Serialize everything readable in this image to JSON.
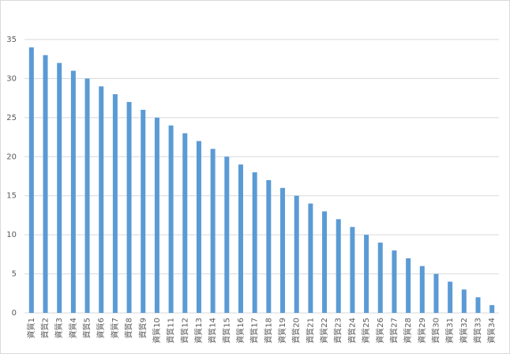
{
  "chart_data": {
    "type": "bar",
    "categories": [
      "資質1",
      "資質2",
      "資質3",
      "資質4",
      "資質5",
      "資質6",
      "資質7",
      "資質8",
      "資質9",
      "資質10",
      "資質11",
      "資質12",
      "資質13",
      "資質14",
      "資質15",
      "資質16",
      "資質17",
      "資質18",
      "資質19",
      "資質20",
      "資質21",
      "資質22",
      "資質23",
      "資質24",
      "資質25",
      "資質26",
      "資質27",
      "資質28",
      "資質29",
      "資質30",
      "資質31",
      "資質32",
      "資質33",
      "資質34"
    ],
    "values": [
      34,
      33,
      32,
      31,
      30,
      29,
      28,
      27,
      26,
      25,
      24,
      23,
      22,
      21,
      20,
      19,
      18,
      17,
      16,
      15,
      14,
      13,
      12,
      11,
      10,
      9,
      8,
      7,
      6,
      5,
      4,
      3,
      2,
      1
    ],
    "color": "#5b9bd5",
    "ylim": [
      0,
      35
    ],
    "yticks": [
      0,
      5,
      10,
      15,
      20,
      25,
      30,
      35
    ],
    "grid": true
  }
}
